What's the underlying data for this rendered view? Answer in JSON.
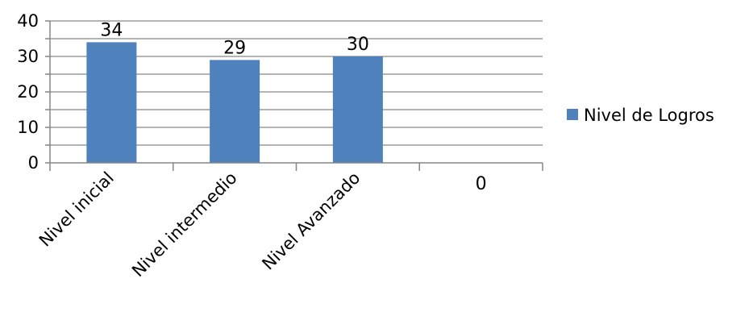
{
  "chart_data": {
    "type": "bar",
    "categories": [
      "Nivel inicial",
      "Nivel intermedio",
      "Nivel Avanzado",
      ""
    ],
    "series": [
      {
        "name": "Nivel de Logros",
        "values": [
          34,
          29,
          30,
          0
        ],
        "color": "#4F81BD"
      }
    ],
    "data_labels": [
      "34",
      "29",
      "30",
      "0"
    ],
    "ylim": [
      0,
      40
    ],
    "y_major_ticks": [
      0,
      10,
      20,
      30,
      40
    ],
    "y_minor_step": 5,
    "grid": true,
    "legend_position": "right",
    "category_label_rotation": "-45deg",
    "title": "",
    "xlabel": "",
    "ylabel": ""
  }
}
